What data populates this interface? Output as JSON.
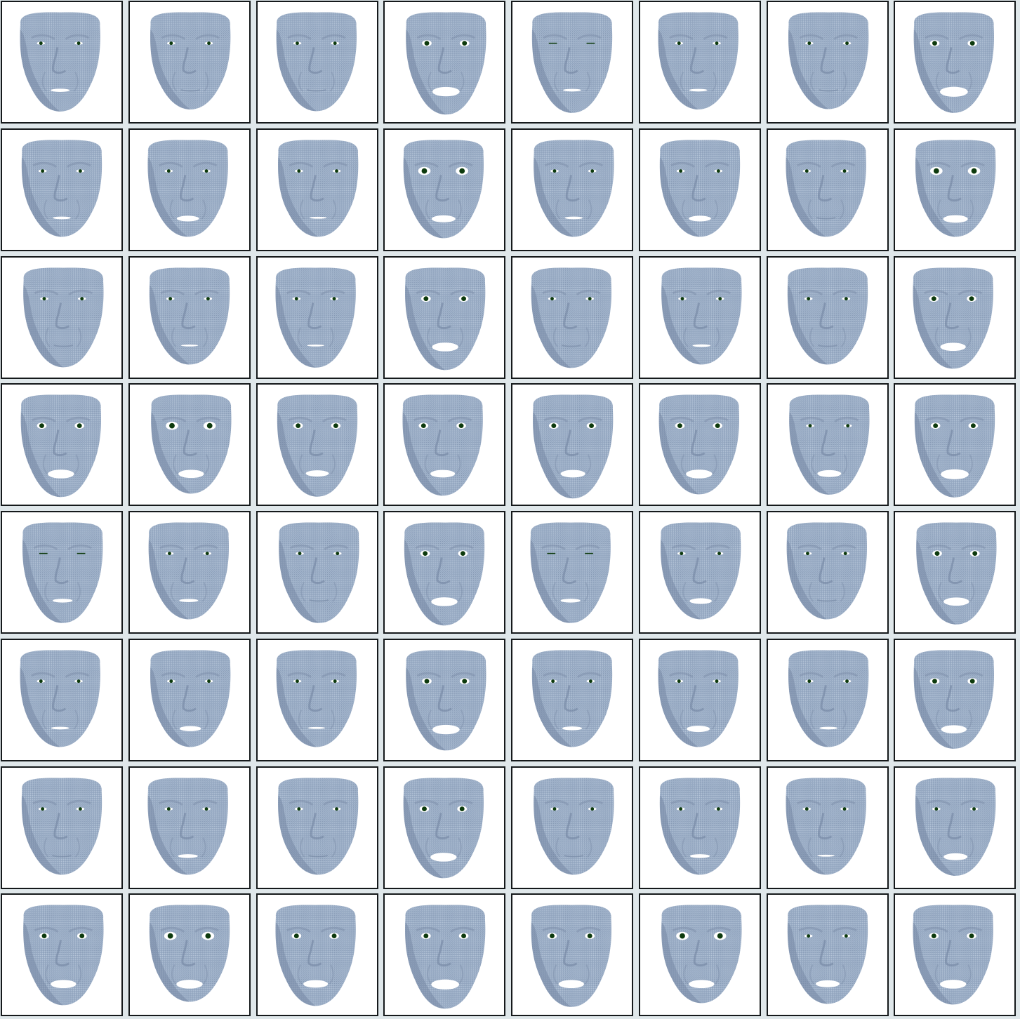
{
  "grid": {
    "rows": 8,
    "cols": 8
  },
  "colors": {
    "background": "#dfe7ea",
    "tile": "#ffffff",
    "border": "#15191b",
    "skin_light": "#9db0c8",
    "skin_mid": "#8699b4",
    "skin_dark": "#6f819e",
    "mouth": "#ffffff",
    "eye_white": "#ffffff",
    "pupil": "#0d3a0d"
  },
  "faces": [
    [
      [
        "n",
        0.15,
        0.35
      ],
      [
        "n",
        0.0,
        0.05
      ],
      [
        "n",
        0.0,
        0.3
      ],
      [
        "o",
        0.65,
        0.8
      ],
      [
        "s",
        0.1,
        0.55
      ],
      [
        "n",
        0.1,
        0.05
      ],
      [
        "n",
        -0.05,
        0.0
      ],
      [
        "o",
        0.7,
        0.55
      ]
    ],
    [
      [
        "n",
        0.1,
        0.0
      ],
      [
        "n",
        0.35,
        0.0
      ],
      [
        "n",
        0.05,
        0.0
      ],
      [
        "w",
        0.45,
        0.2
      ],
      [
        "n",
        0.1,
        0.0
      ],
      [
        "n",
        0.35,
        0.0
      ],
      [
        "n",
        0.0,
        0.0
      ],
      [
        "w",
        0.5,
        0.0
      ]
    ],
    [
      [
        "n",
        0.0,
        0.4
      ],
      [
        "n",
        0.05,
        0.0
      ],
      [
        "n",
        0.05,
        0.45
      ],
      [
        "o",
        0.6,
        0.8
      ],
      [
        "n",
        -0.05,
        0.5
      ],
      [
        "n",
        0.1,
        0.0
      ],
      [
        "n",
        -0.1,
        0.0
      ],
      [
        "o",
        0.55,
        0.6
      ]
    ],
    [
      [
        "o",
        0.6,
        0.8
      ],
      [
        "w",
        0.55,
        0.3
      ],
      [
        "o",
        0.4,
        0.75
      ],
      [
        "o",
        0.5,
        0.6
      ],
      [
        "o",
        0.5,
        1.0
      ],
      [
        "o",
        0.6,
        0.4
      ],
      [
        "n",
        0.45,
        0.45
      ],
      [
        "o",
        0.7,
        0.85
      ]
    ],
    [
      [
        "s",
        0.2,
        0.55
      ],
      [
        "n",
        0.15,
        0.0
      ],
      [
        "n",
        -0.05,
        0.55
      ],
      [
        "o",
        0.6,
        0.9
      ],
      [
        "s",
        0.2,
        0.55
      ],
      [
        "n",
        0.35,
        0.0
      ],
      [
        "n",
        -0.1,
        0.0
      ],
      [
        "o",
        0.55,
        0.75
      ]
    ],
    [
      [
        "n",
        0.1,
        0.0
      ],
      [
        "n",
        0.3,
        0.0
      ],
      [
        "n",
        0.05,
        0.0
      ],
      [
        "o",
        0.65,
        0.5
      ],
      [
        "n",
        0.2,
        0.0
      ],
      [
        "n",
        0.4,
        0.0
      ],
      [
        "n",
        0.1,
        0.0
      ],
      [
        "o",
        0.55,
        0.25
      ]
    ],
    [
      [
        "n",
        -0.05,
        0.0
      ],
      [
        "n",
        0.2,
        0.0
      ],
      [
        "n",
        -0.1,
        0.0
      ],
      [
        "o",
        0.6,
        0.5
      ],
      [
        "n",
        -0.05,
        0.0
      ],
      [
        "n",
        0.2,
        0.0
      ],
      [
        "n",
        0.05,
        0.0
      ],
      [
        "n",
        0.45,
        0.15
      ]
    ],
    [
      [
        "o",
        0.55,
        0.5
      ],
      [
        "w",
        0.6,
        0.0
      ],
      [
        "o",
        0.5,
        0.6
      ],
      [
        "o",
        0.7,
        1.0
      ],
      [
        "o",
        0.55,
        0.75
      ],
      [
        "w",
        0.55,
        0.2
      ],
      [
        "n",
        0.45,
        0.3
      ],
      [
        "o",
        0.6,
        0.4
      ]
    ]
  ]
}
